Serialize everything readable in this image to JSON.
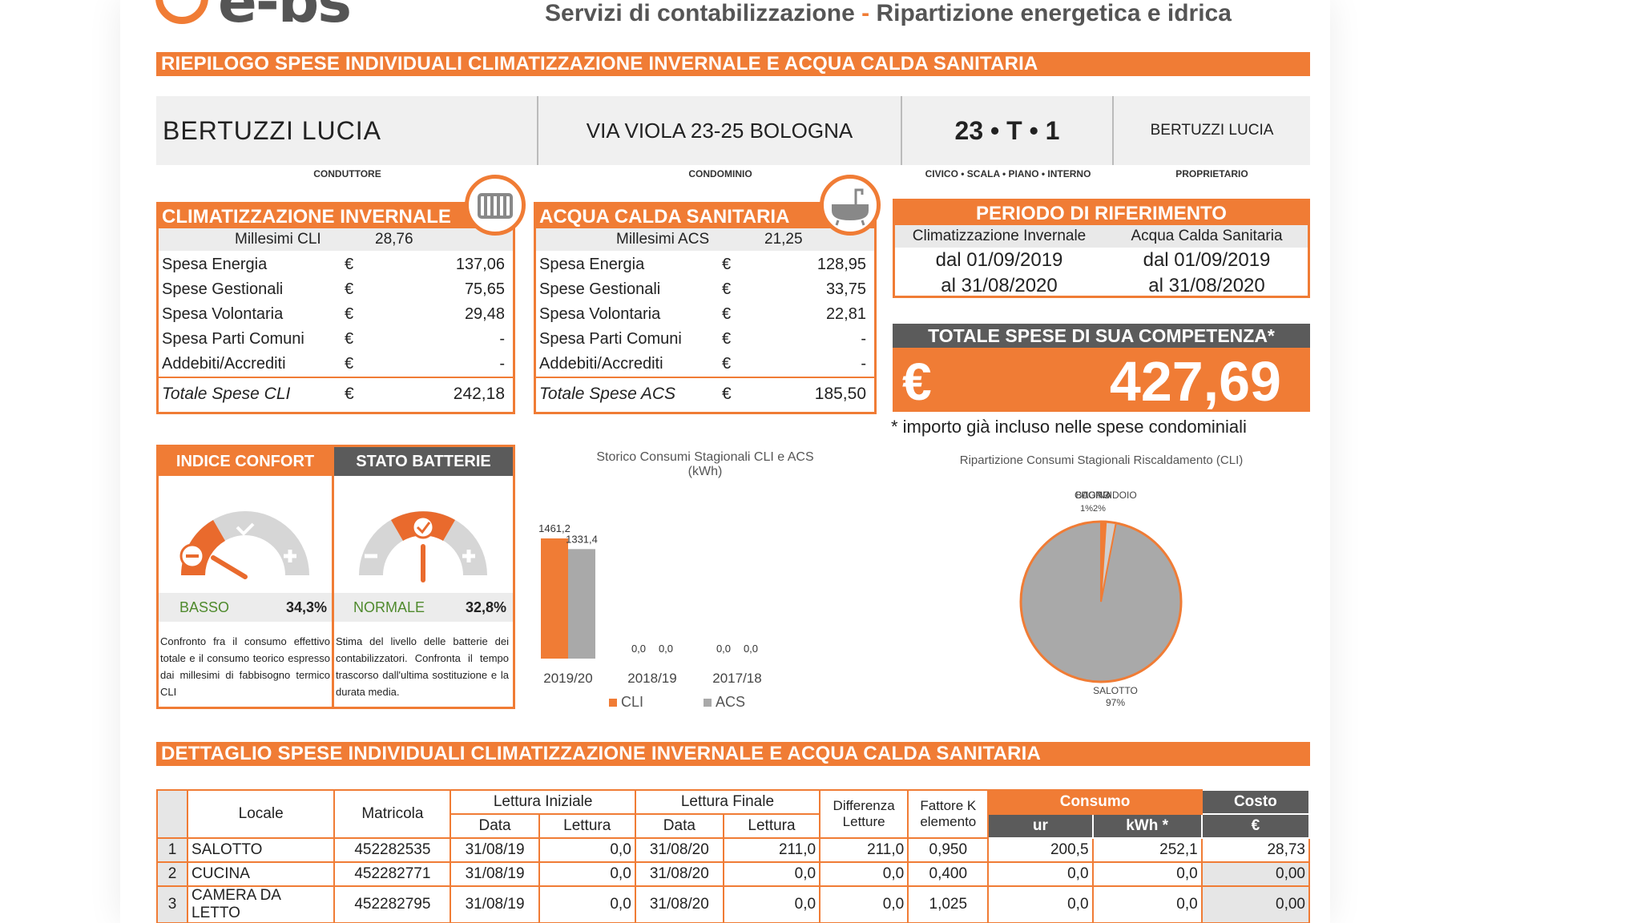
{
  "header": {
    "logo": "e-bs",
    "tagline_left": "Servizi di contabilizzazione",
    "tagline_sep": "-",
    "tagline_right": "Ripartizione energetica e idrica"
  },
  "summary_title": "RIEPILOGO SPESE INDIVIDUALI CLIMATIZZAZIONE INVERNALE E ACQUA CALDA SANITARIA",
  "info": {
    "conduttore": "BERTUZZI LUCIA",
    "condominio": "VIA VIOLA 23-25 BOLOGNA",
    "civico": "23 • T • 1",
    "proprietario": "BERTUZZI LUCIA",
    "labels": {
      "conduttore": "CONDUTTORE",
      "condominio": "CONDOMINIO",
      "civico": "CIVICO • SCALA • PIANO • INTERNO",
      "proprietario": "PROPRIETARIO"
    }
  },
  "cli": {
    "title": "CLIMATIZZAZIONE INVERNALE",
    "millesimi_label": "Millesimi CLI",
    "millesimi_value": "28,76",
    "rows": [
      {
        "label": "Spesa Energia",
        "currency": "€",
        "value": "137,06"
      },
      {
        "label": "Spese Gestionali",
        "currency": "€",
        "value": "75,65"
      },
      {
        "label": "Spesa Volontaria",
        "currency": "€",
        "value": "29,48"
      },
      {
        "label": "Spesa Parti Comuni",
        "currency": "€",
        "value": "-"
      },
      {
        "label": "Addebiti/Accrediti",
        "currency": "€",
        "value": "-"
      }
    ],
    "total_label": "Totale Spese CLI",
    "total_currency": "€",
    "total_value": "242,18"
  },
  "acs": {
    "title": "ACQUA CALDA SANITARIA",
    "millesimi_label": "Millesimi ACS",
    "millesimi_value": "21,25",
    "rows": [
      {
        "label": "Spesa Energia",
        "currency": "€",
        "value": "128,95"
      },
      {
        "label": "Spese Gestionali",
        "currency": "€",
        "value": "33,75"
      },
      {
        "label": "Spesa Volontaria",
        "currency": "€",
        "value": "22,81"
      },
      {
        "label": "Spesa Parti Comuni",
        "currency": "€",
        "value": "-"
      },
      {
        "label": "Addebiti/Accrediti",
        "currency": "€",
        "value": "-"
      }
    ],
    "total_label": "Totale Spese ACS",
    "total_currency": "€",
    "total_value": "185,50"
  },
  "periodo": {
    "title": "PERIODO DI RIFERIMENTO",
    "col1_head": "Climatizzazione Invernale",
    "col2_head": "Acqua Calda Sanitaria",
    "col1_from": "dal 01/09/2019",
    "col1_to": "al 31/08/2020",
    "col2_from": "dal 01/09/2019",
    "col2_to": "al 31/08/2020"
  },
  "totale": {
    "title": "TOTALE SPESE DI SUA COMPETENZA*",
    "currency": "€",
    "value": "427,69",
    "note": "* importo già incluso nelle spese condominiali"
  },
  "confort": {
    "title": "INDICE CONFORT",
    "status": "BASSO",
    "percent": "34,3%",
    "desc": "Confronto fra il consumo effettivo totale e il consumo teorico espresso dai millesimi di fabbisogno termico CLI",
    "colors": {
      "status": "#4f8a2d"
    }
  },
  "batterie": {
    "title": "STATO BATTERIE",
    "status": "NORMALE",
    "percent": "32,8%",
    "desc": "Stima del livello delle batterie dei contabilizzatori. Confronta il tempo trascorso dall'ultima sostituzione e la durata media."
  },
  "chart_data": [
    {
      "type": "bar",
      "title": "Storico Consumi Stagionali CLI e ACS",
      "subtitle": "(kWh)",
      "categories": [
        "2019/20",
        "2018/19",
        "2017/18"
      ],
      "series": [
        {
          "name": "CLI",
          "values": [
            1461.2,
            0.0,
            0.0
          ],
          "labels": [
            "1461,2",
            "0,0",
            "0,0"
          ],
          "color": "#f07c35"
        },
        {
          "name": "ACS",
          "values": [
            1331.4,
            0.0,
            0.0
          ],
          "labels": [
            "1331,4",
            "0,0",
            "0,0"
          ],
          "color": "#a9a9a9"
        }
      ]
    },
    {
      "type": "pie",
      "title": "Ripartizione Consumi Stagionali Riscaldamento (CLI)",
      "slices": [
        {
          "label": "SALOTTO",
          "value": 97,
          "pct_label": "97%",
          "color": "#a9a9a9"
        },
        {
          "label": "CUCINA",
          "value": 1,
          "pct_label": "1%",
          "color": "#f07c35"
        },
        {
          "label": "BAGNO",
          "value": 2,
          "pct_label": "2%",
          "color": "#cfcfcf"
        }
      ],
      "overlap_text": "CAMERA DA LETTO / CORRIDOIO",
      "overlap_pct": "1%2%"
    }
  ],
  "detail_title": "DETTAGLIO SPESE INDIVIDUALI CLIMATIZZAZIONE INVERNALE E ACQUA CALDA SANITARIA",
  "detail": {
    "headers": {
      "locale": "Locale",
      "matricola": "Matricola",
      "lettura_iniziale": "Lettura Iniziale",
      "lettura_finale": "Lettura Finale",
      "data": "Data",
      "lettura": "Lettura",
      "differenza": "Differenza Letture",
      "fattore": "Fattore K elemento",
      "consumo": "Consumo",
      "ur": "ur",
      "kwh": "kWh *",
      "costo": "Costo",
      "euro": "€"
    },
    "rows": [
      {
        "n": "1",
        "locale": "SALOTTO",
        "matricola": "452282535",
        "d1": "31/08/19",
        "l1": "0,0",
        "d2": "31/08/20",
        "l2": "211,0",
        "diff": "211,0",
        "k": "0,950",
        "ur": "200,5",
        "kwh": "252,1",
        "costo": "28,73"
      },
      {
        "n": "2",
        "locale": "CUCINA",
        "matricola": "452282771",
        "d1": "31/08/19",
        "l1": "0,0",
        "d2": "31/08/20",
        "l2": "0,0",
        "diff": "0,0",
        "k": "0,400",
        "ur": "0,0",
        "kwh": "0,0",
        "costo": "0,00"
      },
      {
        "n": "3",
        "locale": "CAMERA DA LETTO",
        "matricola": "452282795",
        "d1": "31/08/19",
        "l1": "0,0",
        "d2": "31/08/20",
        "l2": "0,0",
        "diff": "0,0",
        "k": "1,025",
        "ur": "0,0",
        "kwh": "0,0",
        "costo": "0,00"
      }
    ]
  }
}
